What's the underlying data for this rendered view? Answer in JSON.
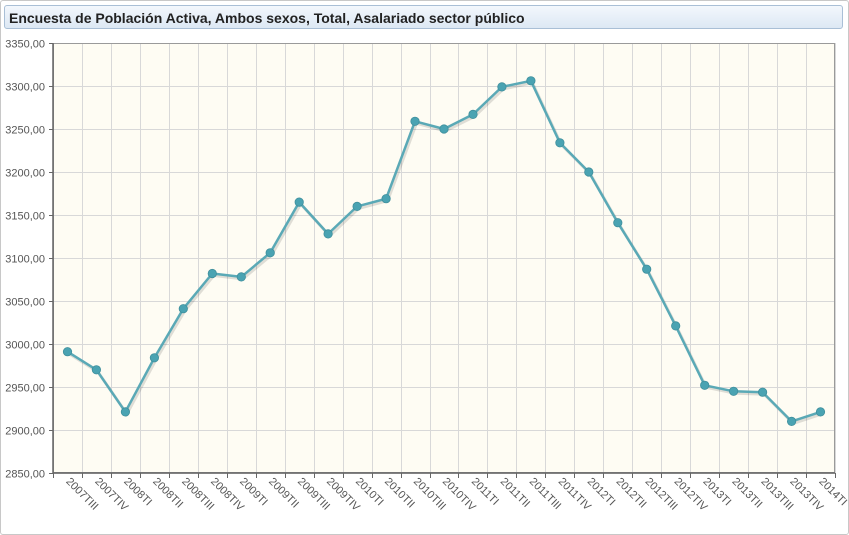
{
  "title": "Encuesta de Población Activa, Ambos sexos, Total, Asalariado sector público",
  "colors": {
    "plot_background": "#fefcf3",
    "grid": "#d8d8d8",
    "series_line": "#5aa9b6",
    "series_marker": "#4aa3b2",
    "axis": "#666666"
  },
  "chart_data": {
    "type": "line",
    "title": "Encuesta de Población Activa, Ambos sexos, Total, Asalariado sector público",
    "xlabel": "",
    "ylabel": "",
    "ylim": [
      2850,
      3350
    ],
    "y_ticks": [
      "3350,00",
      "3300,00",
      "3250,00",
      "3200,00",
      "3150,00",
      "3100,00",
      "3050,00",
      "3000,00",
      "2950,00",
      "2900,00",
      "2850,00"
    ],
    "grid": true,
    "categories": [
      "2007TIII",
      "2007TIV",
      "2008TI",
      "2008TII",
      "2008TIII",
      "2008TIV",
      "2009TI",
      "2009TII",
      "2009TIII",
      "2009TIV",
      "2010TI",
      "2010TII",
      "2010TIII",
      "2010TIV",
      "2011TI",
      "2011TII",
      "2011TIII",
      "2011TIV",
      "2012TI",
      "2012TII",
      "2012TIII",
      "2012TIV",
      "2013TI",
      "2013TII",
      "2013TIII",
      "2013TIV",
      "2014TI"
    ],
    "series": [
      {
        "values": [
          2991,
          2970,
          2921,
          2984,
          3041,
          3082,
          3078,
          3106,
          3165,
          3128,
          3160,
          3169,
          3259,
          3250,
          3267,
          3299,
          3306,
          3234,
          3200,
          3141,
          3087,
          3021,
          2952,
          2945,
          2944,
          2910,
          2921
        ]
      }
    ]
  }
}
